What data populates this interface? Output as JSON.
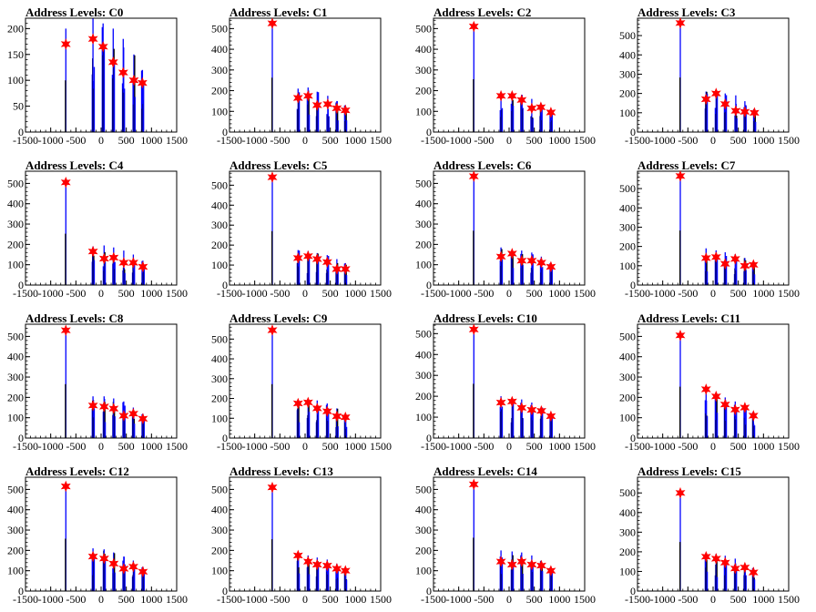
{
  "figure": {
    "colors": {
      "histogram": "#0000ff",
      "peak_marker": "#ff0000",
      "axis": "#000000",
      "background": "#ffffff"
    }
  },
  "chart_data": [
    {
      "type": "bar",
      "title": "Address Levels: C0",
      "xlim": [
        -1500,
        1500
      ],
      "ylim": [
        0,
        220
      ],
      "xticks": [
        -1500,
        -1000,
        -500,
        0,
        500,
        1000,
        1500
      ],
      "yticks": [
        0,
        50,
        100,
        150,
        200
      ],
      "peaks": [
        {
          "x": -700,
          "y": 170
        },
        {
          "x": -160,
          "y": 180
        },
        {
          "x": 40,
          "y": 165
        },
        {
          "x": 240,
          "y": 135
        },
        {
          "x": 440,
          "y": 115
        },
        {
          "x": 650,
          "y": 100
        },
        {
          "x": 820,
          "y": 95
        }
      ],
      "bar_heights": [
        200,
        220,
        210,
        200,
        180,
        150,
        120
      ]
    },
    {
      "type": "bar",
      "title": "Address Levels: C1",
      "xlim": [
        -1500,
        1500
      ],
      "ylim": [
        0,
        550
      ],
      "xticks": [
        -1500,
        -1000,
        -500,
        0,
        500,
        1000,
        1500
      ],
      "yticks": [
        0,
        100,
        200,
        300,
        400,
        500
      ],
      "peaks": [
        {
          "x": -650,
          "y": 525
        },
        {
          "x": -140,
          "y": 165
        },
        {
          "x": 60,
          "y": 175
        },
        {
          "x": 240,
          "y": 130
        },
        {
          "x": 450,
          "y": 135
        },
        {
          "x": 630,
          "y": 115
        },
        {
          "x": 800,
          "y": 105
        }
      ],
      "bar_heights": [
        525,
        210,
        215,
        195,
        175,
        150,
        130
      ]
    },
    {
      "type": "bar",
      "title": "Address Levels: C2",
      "xlim": [
        -1500,
        1500
      ],
      "ylim": [
        0,
        550
      ],
      "xticks": [
        -1500,
        -1000,
        -500,
        0,
        500,
        1000,
        1500
      ],
      "yticks": [
        0,
        100,
        200,
        300,
        400,
        500
      ],
      "peaks": [
        {
          "x": -700,
          "y": 510
        },
        {
          "x": -160,
          "y": 175
        },
        {
          "x": 60,
          "y": 175
        },
        {
          "x": 250,
          "y": 155
        },
        {
          "x": 450,
          "y": 115
        },
        {
          "x": 630,
          "y": 120
        },
        {
          "x": 830,
          "y": 95
        }
      ],
      "bar_heights": [
        510,
        190,
        190,
        180,
        160,
        140,
        110
      ]
    },
    {
      "type": "bar",
      "title": "Address Levels: C3",
      "xlim": [
        -1500,
        1500
      ],
      "ylim": [
        0,
        590
      ],
      "xticks": [
        -1500,
        -1000,
        -500,
        0,
        500,
        1000,
        1500
      ],
      "yticks": [
        0,
        100,
        200,
        300,
        400,
        500
      ],
      "peaks": [
        {
          "x": -650,
          "y": 565
        },
        {
          "x": -140,
          "y": 170
        },
        {
          "x": 60,
          "y": 200
        },
        {
          "x": 240,
          "y": 145
        },
        {
          "x": 450,
          "y": 110
        },
        {
          "x": 630,
          "y": 105
        },
        {
          "x": 820,
          "y": 100
        }
      ],
      "bar_heights": [
        565,
        210,
        210,
        200,
        190,
        160,
        120
      ]
    },
    {
      "type": "bar",
      "title": "Address Levels: C4",
      "xlim": [
        -1500,
        1500
      ],
      "ylim": [
        0,
        560
      ],
      "xticks": [
        -1500,
        -1000,
        -500,
        0,
        500,
        1000,
        1500
      ],
      "yticks": [
        0,
        100,
        200,
        300,
        400,
        500
      ],
      "peaks": [
        {
          "x": -700,
          "y": 505
        },
        {
          "x": -160,
          "y": 165
        },
        {
          "x": 60,
          "y": 130
        },
        {
          "x": 250,
          "y": 135
        },
        {
          "x": 450,
          "y": 110
        },
        {
          "x": 640,
          "y": 110
        },
        {
          "x": 830,
          "y": 90
        }
      ],
      "bar_heights": [
        505,
        190,
        195,
        185,
        170,
        150,
        120
      ]
    },
    {
      "type": "bar",
      "title": "Address Levels: C5",
      "xlim": [
        -1500,
        1500
      ],
      "ylim": [
        0,
        570
      ],
      "xticks": [
        -1500,
        -1000,
        -500,
        0,
        500,
        1000,
        1500
      ],
      "yticks": [
        0,
        100,
        200,
        300,
        400,
        500
      ],
      "peaks": [
        {
          "x": -650,
          "y": 540
        },
        {
          "x": -140,
          "y": 135
        },
        {
          "x": 60,
          "y": 145
        },
        {
          "x": 240,
          "y": 130
        },
        {
          "x": 440,
          "y": 115
        },
        {
          "x": 630,
          "y": 80
        },
        {
          "x": 800,
          "y": 80
        }
      ],
      "bar_heights": [
        540,
        175,
        170,
        160,
        150,
        130,
        110
      ]
    },
    {
      "type": "bar",
      "title": "Address Levels: C6",
      "xlim": [
        -1500,
        1500
      ],
      "ylim": [
        0,
        560
      ],
      "xticks": [
        -1500,
        -1000,
        -500,
        0,
        500,
        1000,
        1500
      ],
      "yticks": [
        0,
        100,
        200,
        300,
        400,
        500
      ],
      "peaks": [
        {
          "x": -700,
          "y": 535
        },
        {
          "x": -160,
          "y": 140
        },
        {
          "x": 60,
          "y": 155
        },
        {
          "x": 250,
          "y": 120
        },
        {
          "x": 450,
          "y": 120
        },
        {
          "x": 640,
          "y": 110
        },
        {
          "x": 830,
          "y": 90
        }
      ],
      "bar_heights": [
        535,
        185,
        175,
        170,
        160,
        140,
        110
      ]
    },
    {
      "type": "bar",
      "title": "Address Levels: C7",
      "xlim": [
        -1500,
        1500
      ],
      "ylim": [
        0,
        590
      ],
      "xticks": [
        -1500,
        -1000,
        -500,
        0,
        500,
        1000,
        1500
      ],
      "yticks": [
        0,
        100,
        200,
        300,
        400,
        500
      ],
      "peaks": [
        {
          "x": -650,
          "y": 565
        },
        {
          "x": -140,
          "y": 140
        },
        {
          "x": 60,
          "y": 145
        },
        {
          "x": 240,
          "y": 110
        },
        {
          "x": 440,
          "y": 135
        },
        {
          "x": 630,
          "y": 100
        },
        {
          "x": 800,
          "y": 105
        }
      ],
      "bar_heights": [
        565,
        190,
        180,
        170,
        160,
        140,
        120
      ]
    },
    {
      "type": "bar",
      "title": "Address Levels: C8",
      "xlim": [
        -1500,
        1500
      ],
      "ylim": [
        0,
        560
      ],
      "xticks": [
        -1500,
        -1000,
        -500,
        0,
        500,
        1000,
        1500
      ],
      "yticks": [
        0,
        100,
        200,
        300,
        400,
        500
      ],
      "peaks": [
        {
          "x": -700,
          "y": 530
        },
        {
          "x": -160,
          "y": 160
        },
        {
          "x": 60,
          "y": 155
        },
        {
          "x": 250,
          "y": 145
        },
        {
          "x": 450,
          "y": 110
        },
        {
          "x": 640,
          "y": 120
        },
        {
          "x": 830,
          "y": 95
        }
      ],
      "bar_heights": [
        530,
        205,
        205,
        195,
        180,
        150,
        120
      ]
    },
    {
      "type": "bar",
      "title": "Address Levels: C9",
      "xlim": [
        -1500,
        1500
      ],
      "ylim": [
        0,
        575
      ],
      "xticks": [
        -1500,
        -1000,
        -500,
        0,
        500,
        1000,
        1500
      ],
      "yticks": [
        0,
        100,
        200,
        300,
        400,
        500
      ],
      "peaks": [
        {
          "x": -650,
          "y": 545
        },
        {
          "x": -140,
          "y": 175
        },
        {
          "x": 60,
          "y": 180
        },
        {
          "x": 240,
          "y": 150
        },
        {
          "x": 440,
          "y": 135
        },
        {
          "x": 630,
          "y": 110
        },
        {
          "x": 800,
          "y": 105
        }
      ],
      "bar_heights": [
        545,
        195,
        200,
        190,
        175,
        150,
        120
      ]
    },
    {
      "type": "bar",
      "title": "Address Levels: C10",
      "xlim": [
        -1500,
        1500
      ],
      "ylim": [
        0,
        545
      ],
      "xticks": [
        -1500,
        -1000,
        -500,
        0,
        500,
        1000,
        1500
      ],
      "yticks": [
        0,
        100,
        200,
        300,
        400,
        500
      ],
      "peaks": [
        {
          "x": -700,
          "y": 520
        },
        {
          "x": -160,
          "y": 170
        },
        {
          "x": 60,
          "y": 175
        },
        {
          "x": 250,
          "y": 145
        },
        {
          "x": 450,
          "y": 135
        },
        {
          "x": 640,
          "y": 130
        },
        {
          "x": 830,
          "y": 105
        }
      ],
      "bar_heights": [
        520,
        200,
        195,
        185,
        170,
        150,
        120
      ]
    },
    {
      "type": "bar",
      "title": "Address Levels: C11",
      "xlim": [
        -1500,
        1500
      ],
      "ylim": [
        0,
        560
      ],
      "xticks": [
        -1500,
        -1000,
        -500,
        0,
        500,
        1000,
        1500
      ],
      "yticks": [
        0,
        100,
        200,
        300,
        400,
        500
      ],
      "peaks": [
        {
          "x": -650,
          "y": 505
        },
        {
          "x": -140,
          "y": 240
        },
        {
          "x": 60,
          "y": 205
        },
        {
          "x": 240,
          "y": 165
        },
        {
          "x": 440,
          "y": 140
        },
        {
          "x": 630,
          "y": 150
        },
        {
          "x": 800,
          "y": 110
        }
      ],
      "bar_heights": [
        505,
        240,
        220,
        200,
        180,
        160,
        130
      ]
    },
    {
      "type": "bar",
      "title": "Address Levels: C12",
      "xlim": [
        -1500,
        1500
      ],
      "ylim": [
        0,
        560
      ],
      "xticks": [
        -1500,
        -1000,
        -500,
        0,
        500,
        1000,
        1500
      ],
      "yticks": [
        0,
        100,
        200,
        300,
        400,
        500
      ],
      "peaks": [
        {
          "x": -700,
          "y": 515
        },
        {
          "x": -160,
          "y": 170
        },
        {
          "x": 60,
          "y": 160
        },
        {
          "x": 250,
          "y": 135
        },
        {
          "x": 450,
          "y": 110
        },
        {
          "x": 640,
          "y": 120
        },
        {
          "x": 830,
          "y": 95
        }
      ],
      "bar_heights": [
        515,
        210,
        205,
        190,
        170,
        150,
        120
      ]
    },
    {
      "type": "bar",
      "title": "Address Levels: C13",
      "xlim": [
        -1500,
        1500
      ],
      "ylim": [
        0,
        560
      ],
      "xticks": [
        -1500,
        -1000,
        -500,
        0,
        500,
        1000,
        1500
      ],
      "yticks": [
        0,
        100,
        200,
        300,
        400,
        500
      ],
      "peaks": [
        {
          "x": -650,
          "y": 510
        },
        {
          "x": -140,
          "y": 175
        },
        {
          "x": 60,
          "y": 145
        },
        {
          "x": 240,
          "y": 130
        },
        {
          "x": 440,
          "y": 125
        },
        {
          "x": 630,
          "y": 110
        },
        {
          "x": 800,
          "y": 100
        }
      ],
      "bar_heights": [
        510,
        180,
        175,
        165,
        155,
        135,
        115
      ]
    },
    {
      "type": "bar",
      "title": "Address Levels: C14",
      "xlim": [
        -1500,
        1500
      ],
      "ylim": [
        0,
        560
      ],
      "xticks": [
        -1500,
        -1000,
        -500,
        0,
        500,
        1000,
        1500
      ],
      "yticks": [
        0,
        100,
        200,
        300,
        400,
        500
      ],
      "peaks": [
        {
          "x": -700,
          "y": 525
        },
        {
          "x": -160,
          "y": 145
        },
        {
          "x": 60,
          "y": 130
        },
        {
          "x": 250,
          "y": 145
        },
        {
          "x": 450,
          "y": 130
        },
        {
          "x": 640,
          "y": 125
        },
        {
          "x": 830,
          "y": 100
        }
      ],
      "bar_heights": [
        525,
        200,
        195,
        190,
        175,
        150,
        120
      ]
    },
    {
      "type": "bar",
      "title": "Address Levels: C15",
      "xlim": [
        -1500,
        1500
      ],
      "ylim": [
        0,
        580
      ],
      "xticks": [
        -1500,
        -1000,
        -500,
        0,
        500,
        1000,
        1500
      ],
      "yticks": [
        0,
        100,
        200,
        300,
        400,
        500
      ],
      "peaks": [
        {
          "x": -650,
          "y": 500
        },
        {
          "x": -140,
          "y": 175
        },
        {
          "x": 60,
          "y": 165
        },
        {
          "x": 240,
          "y": 145
        },
        {
          "x": 440,
          "y": 115
        },
        {
          "x": 630,
          "y": 120
        },
        {
          "x": 800,
          "y": 95
        }
      ],
      "bar_heights": [
        500,
        190,
        190,
        180,
        165,
        140,
        120
      ]
    }
  ]
}
